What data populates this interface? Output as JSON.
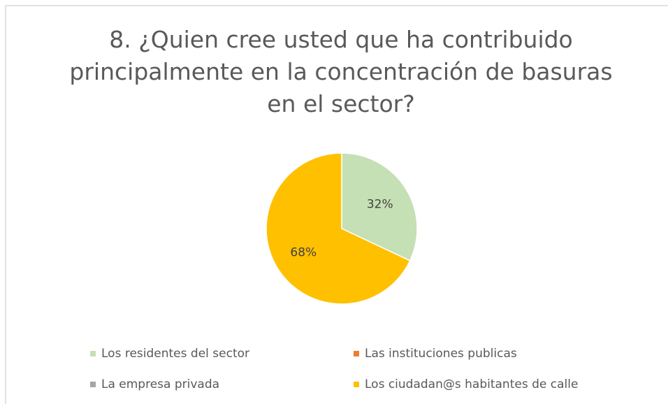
{
  "chart_data": {
    "type": "pie",
    "title": "8. ¿Quien cree usted que ha contribuido principalmente en la concentración de basuras en el sector?",
    "categories": [
      "Los residentes del sector",
      "Las instituciones publicas",
      "La empresa privada",
      "Los ciudadan@s habitantes de calle"
    ],
    "values": [
      32,
      0,
      0,
      68
    ],
    "value_labels": [
      "32%",
      null,
      null,
      "68%"
    ],
    "colors": [
      "#c5e0b4",
      "#ed7d31",
      "#a5a5a5",
      "#ffc000"
    ],
    "legend": "bottom"
  }
}
